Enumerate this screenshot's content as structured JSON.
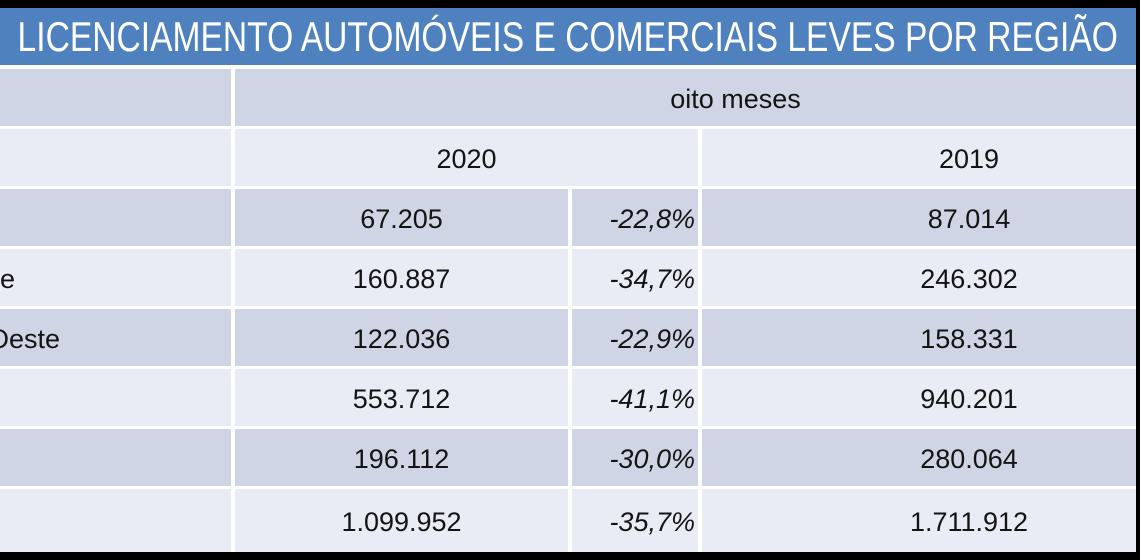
{
  "title": "LICENCIAMENTO AUTOMÓVEIS E COMERCIAIS LEVES POR REGIÃO",
  "chart_data": {
    "type": "table",
    "period_header": "oito meses",
    "year_headers": {
      "y2020": "2020",
      "y2019": "2019"
    },
    "rows": [
      {
        "label_fragment": "",
        "value_2020": "67.205",
        "pct_change": "-22,8%",
        "value_2019": "87.014"
      },
      {
        "label_fragment": "e",
        "value_2020": "160.887",
        "pct_change": "-34,7%",
        "value_2019": "246.302"
      },
      {
        "label_fragment": "Oeste",
        "value_2020": "122.036",
        "pct_change": "-22,9%",
        "value_2019": "158.331"
      },
      {
        "label_fragment": "",
        "value_2020": "553.712",
        "pct_change": "-41,1%",
        "value_2019": "940.201"
      },
      {
        "label_fragment": "",
        "value_2020": "196.112",
        "pct_change": "-30,0%",
        "value_2019": "280.064"
      },
      {
        "label_fragment": "",
        "value_2020": "1.099.952",
        "pct_change": "-35,7%",
        "value_2019": "1.711.912"
      }
    ]
  },
  "colors": {
    "banner_blue": "#4E81BD",
    "band_dark": "#CFD5E4",
    "band_light": "#E9ECF4",
    "frame_black": "#000000",
    "title_text": "#FFFFFF",
    "cell_text": "#141414"
  }
}
